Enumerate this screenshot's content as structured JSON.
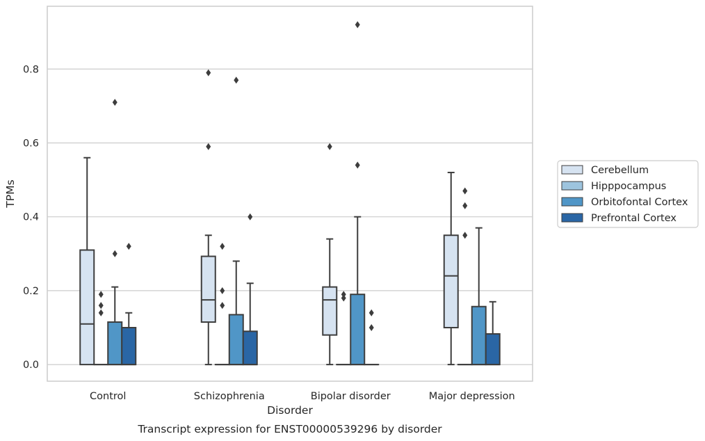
{
  "chart_data": {
    "type": "box",
    "xlabel": "Disorder",
    "ylabel": "TPMs",
    "caption": "Transcript expression for ENST00000539296 by disorder",
    "ylim": [
      -0.045,
      0.97
    ],
    "yticks": [
      "0.0",
      "0.2",
      "0.4",
      "0.6",
      "0.8"
    ],
    "grid": true,
    "legend_position": "right",
    "categories": [
      "Control",
      "Schizophrenia",
      "Bipolar disorder",
      "Major depression"
    ],
    "series": [
      {
        "name": "Cerebellum",
        "color": "#d6e3f1",
        "boxes": [
          {
            "whislo": 0.0,
            "q1": 0.0,
            "med": 0.11,
            "q3": 0.31,
            "whishi": 0.56,
            "fliers": []
          },
          {
            "whislo": 0.0,
            "q1": 0.115,
            "med": 0.175,
            "q3": 0.293,
            "whishi": 0.35,
            "fliers": [
              0.59,
              0.79
            ]
          },
          {
            "whislo": 0.0,
            "q1": 0.08,
            "med": 0.175,
            "q3": 0.21,
            "whishi": 0.34,
            "fliers": [
              0.59
            ]
          },
          {
            "whislo": 0.0,
            "q1": 0.1,
            "med": 0.24,
            "q3": 0.35,
            "whishi": 0.52,
            "fliers": []
          }
        ]
      },
      {
        "name": "Hipppocampus",
        "color": "#9dc4de",
        "boxes": [
          {
            "whislo": 0.0,
            "q1": 0.0,
            "med": 0.0,
            "q3": 0.0,
            "whishi": 0.0,
            "fliers": [
              0.14,
              0.16,
              0.19
            ]
          },
          {
            "whislo": 0.0,
            "q1": 0.0,
            "med": 0.0,
            "q3": 0.0,
            "whishi": 0.0,
            "fliers": [
              0.16,
              0.2,
              0.32
            ]
          },
          {
            "whislo": 0.0,
            "q1": 0.0,
            "med": 0.0,
            "q3": 0.0,
            "whishi": 0.0,
            "fliers": [
              0.18,
              0.19
            ]
          },
          {
            "whislo": 0.0,
            "q1": 0.0,
            "med": 0.0,
            "q3": 0.0,
            "whishi": 0.0,
            "fliers": [
              0.35,
              0.43,
              0.47
            ]
          }
        ]
      },
      {
        "name": "Orbitofontal Cortex",
        "color": "#5096c7",
        "boxes": [
          {
            "whislo": 0.0,
            "q1": 0.0,
            "med": 0.0,
            "q3": 0.115,
            "whishi": 0.21,
            "fliers": [
              0.3,
              0.71
            ]
          },
          {
            "whislo": 0.0,
            "q1": 0.0,
            "med": 0.0,
            "q3": 0.135,
            "whishi": 0.28,
            "fliers": [
              0.77
            ]
          },
          {
            "whislo": 0.0,
            "q1": 0.0,
            "med": 0.0,
            "q3": 0.19,
            "whishi": 0.4,
            "fliers": [
              0.54,
              0.92
            ]
          },
          {
            "whislo": 0.0,
            "q1": 0.0,
            "med": 0.0,
            "q3": 0.157,
            "whishi": 0.37,
            "fliers": []
          }
        ]
      },
      {
        "name": "Prefrontal Cortex",
        "color": "#2a66a5",
        "boxes": [
          {
            "whislo": 0.0,
            "q1": 0.0,
            "med": 0.0,
            "q3": 0.1,
            "whishi": 0.14,
            "fliers": [
              0.32
            ]
          },
          {
            "whislo": 0.0,
            "q1": 0.0,
            "med": 0.0,
            "q3": 0.09,
            "whishi": 0.22,
            "fliers": [
              0.4
            ]
          },
          {
            "whislo": 0.0,
            "q1": 0.0,
            "med": 0.0,
            "q3": 0.0,
            "whishi": 0.0,
            "fliers": [
              0.1,
              0.14
            ]
          },
          {
            "whislo": 0.0,
            "q1": 0.0,
            "med": 0.0,
            "q3": 0.083,
            "whishi": 0.17,
            "fliers": []
          }
        ]
      }
    ]
  }
}
